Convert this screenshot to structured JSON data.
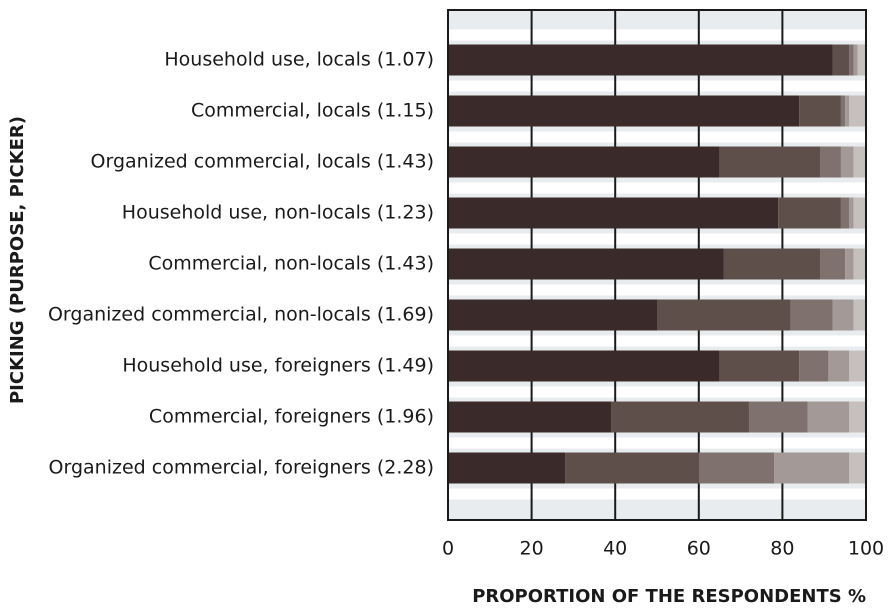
{
  "chart_data": {
    "type": "stacked_barh",
    "ylabel": "PICKING (PURPOSE, PICKER)",
    "xlabel": "PROPORTION OF THE RESPONDENTS %",
    "categories": [
      "Household use, locals (1.07)",
      "Commercial, locals (1.15)",
      "Organized commercial, locals (1.43)",
      "Household use, non-locals (1.23)",
      "Commercial, non-locals (1.43)",
      "Organized commercial, non-locals (1.69)",
      "Household use, foreigners (1.49)",
      "Commercial, foreigners (1.96)",
      "Organized commercial, foreigners (2.28)"
    ],
    "series": [
      {
        "color": "#3a2b2a",
        "values": [
          92,
          84,
          65,
          79,
          66,
          50,
          65,
          39,
          28
        ]
      },
      {
        "color": "#5e4f4b",
        "values": [
          4,
          10,
          24,
          15,
          23,
          32,
          19,
          33,
          32
        ]
      },
      {
        "color": "#7f716d",
        "values": [
          1,
          1,
          5,
          2,
          6,
          10,
          7,
          14,
          18
        ]
      },
      {
        "color": "#a39996",
        "values": [
          1,
          1,
          3,
          1,
          2,
          5,
          5,
          10,
          18
        ]
      },
      {
        "color": "#c5bfbd",
        "values": [
          2,
          4,
          3,
          3,
          3,
          3,
          4,
          4,
          4
        ]
      }
    ],
    "xlim": [
      0,
      100
    ],
    "xticks": [
      0,
      20,
      40,
      60,
      80,
      100
    ],
    "grid": true
  }
}
